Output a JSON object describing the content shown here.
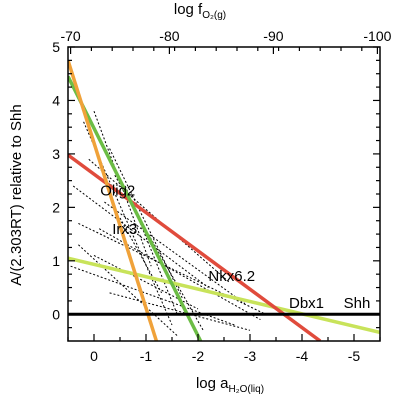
{
  "chart_data": {
    "type": "line",
    "xlabel_bottom": "log a",
    "xlabel_bottom_sub": "H₂O(liq)",
    "xlabel_top": "log f",
    "xlabel_top_sub": "O₂(g)",
    "ylabel": "A/(2.303RT) relative to Shh",
    "xlim": [
      0.5,
      -5.5
    ],
    "ylim": [
      -0.5,
      5
    ],
    "bottom_ticks": [
      {
        "value": 0,
        "label": "0"
      },
      {
        "value": -1,
        "label": "-1"
      },
      {
        "value": -2,
        "label": "-2"
      },
      {
        "value": -3,
        "label": "-3"
      },
      {
        "value": -4,
        "label": "-4"
      },
      {
        "value": -5,
        "label": "-5"
      }
    ],
    "top_ticks": [
      {
        "x": 0.45,
        "label": "-70"
      },
      {
        "x": -1.45,
        "label": "-80"
      },
      {
        "x": -3.45,
        "label": "-90"
      },
      {
        "x": -5.45,
        "label": "-100"
      }
    ],
    "left_ticks": [
      {
        "value": 0,
        "label": "0"
      },
      {
        "value": 1,
        "label": "1"
      },
      {
        "value": 2,
        "label": "2"
      },
      {
        "value": 3,
        "label": "3"
      },
      {
        "value": 4,
        "label": "4"
      },
      {
        "value": 5,
        "label": "5"
      }
    ],
    "series": [
      {
        "name": "Shh",
        "color": "#000000",
        "points": [
          [
            0.5,
            0
          ],
          [
            -5.5,
            0
          ]
        ],
        "label_at": [
          -4.8,
          0.12
        ]
      },
      {
        "name": "Dbx1",
        "color": "#c8e35a",
        "points": [
          [
            0.5,
            1.05
          ],
          [
            -5.5,
            -0.34
          ]
        ],
        "label_at": [
          -3.75,
          0.12
        ]
      },
      {
        "name": "Nkx6.2",
        "color": "#e04b3c",
        "points": [
          [
            0.5,
            2.98
          ],
          [
            -4.35,
            -0.5
          ]
        ],
        "label_at": [
          -2.2,
          0.62
        ]
      },
      {
        "name": "Irx3",
        "color": "#6cbd45",
        "points": [
          [
            0.5,
            4.45
          ],
          [
            -2.05,
            -0.5
          ]
        ],
        "label_at": [
          -0.35,
          1.5
        ]
      },
      {
        "name": "Olig2",
        "color": "#f0a23a",
        "points": [
          [
            0.5,
            4.75
          ],
          [
            -1.2,
            -0.5
          ]
        ],
        "label_at": [
          -0.12,
          2.22
        ]
      }
    ]
  }
}
